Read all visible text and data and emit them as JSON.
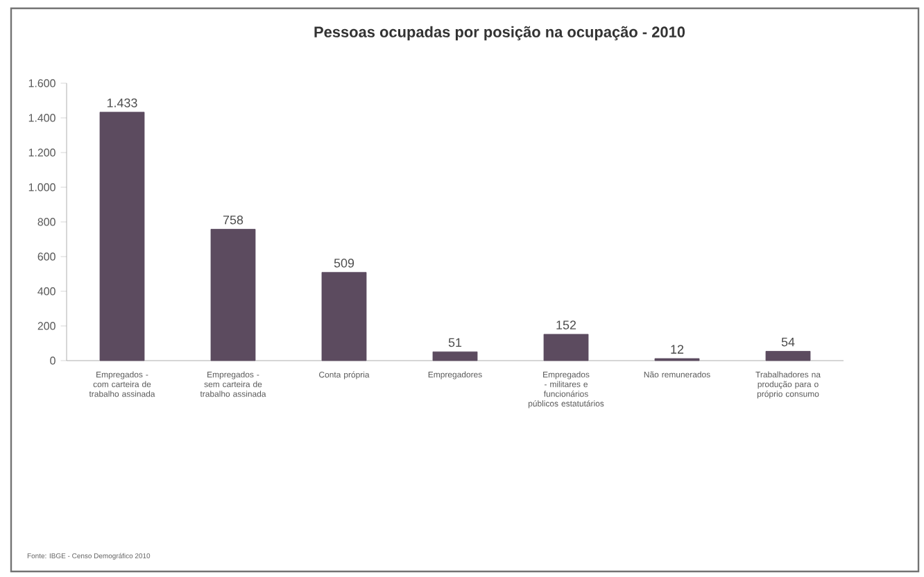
{
  "chart_data": {
    "type": "bar",
    "title": "Pessoas ocupadas por posição na ocupação - 2010",
    "categories": [
      "Empregados - com carteira de trabalho assinada",
      "Empregados - sem carteira de trabalho assinada",
      "Conta própria",
      "Empregadores",
      "Empregados - militares e funcionários públicos estatutários",
      "Não remunerados",
      "Trabalhadores na produção para o próprio consumo"
    ],
    "values": [
      1433,
      758,
      509,
      51,
      152,
      12,
      54
    ],
    "value_labels": [
      "1.433",
      "758",
      "509",
      "51",
      "152",
      "12",
      "54"
    ],
    "color": "#5c4b5f",
    "ylim": [
      0,
      1600
    ],
    "yticks": [
      0,
      {
        "value": 200,
        "label": "200"
      },
      {
        "value": 400,
        "label": "400"
      },
      {
        "value": 600,
        "label": "600"
      },
      {
        "value": 800,
        "label": "800"
      },
      {
        "value": 1000,
        "label": "1.000"
      },
      {
        "value": 1200,
        "label": "1.200"
      },
      {
        "value": 1400,
        "label": "1.400"
      },
      {
        "value": 1600,
        "label": "1.600"
      }
    ],
    "grid": false,
    "annotations": [
      "Fonte: IBGE - Censo Demográfico 2010"
    ]
  }
}
